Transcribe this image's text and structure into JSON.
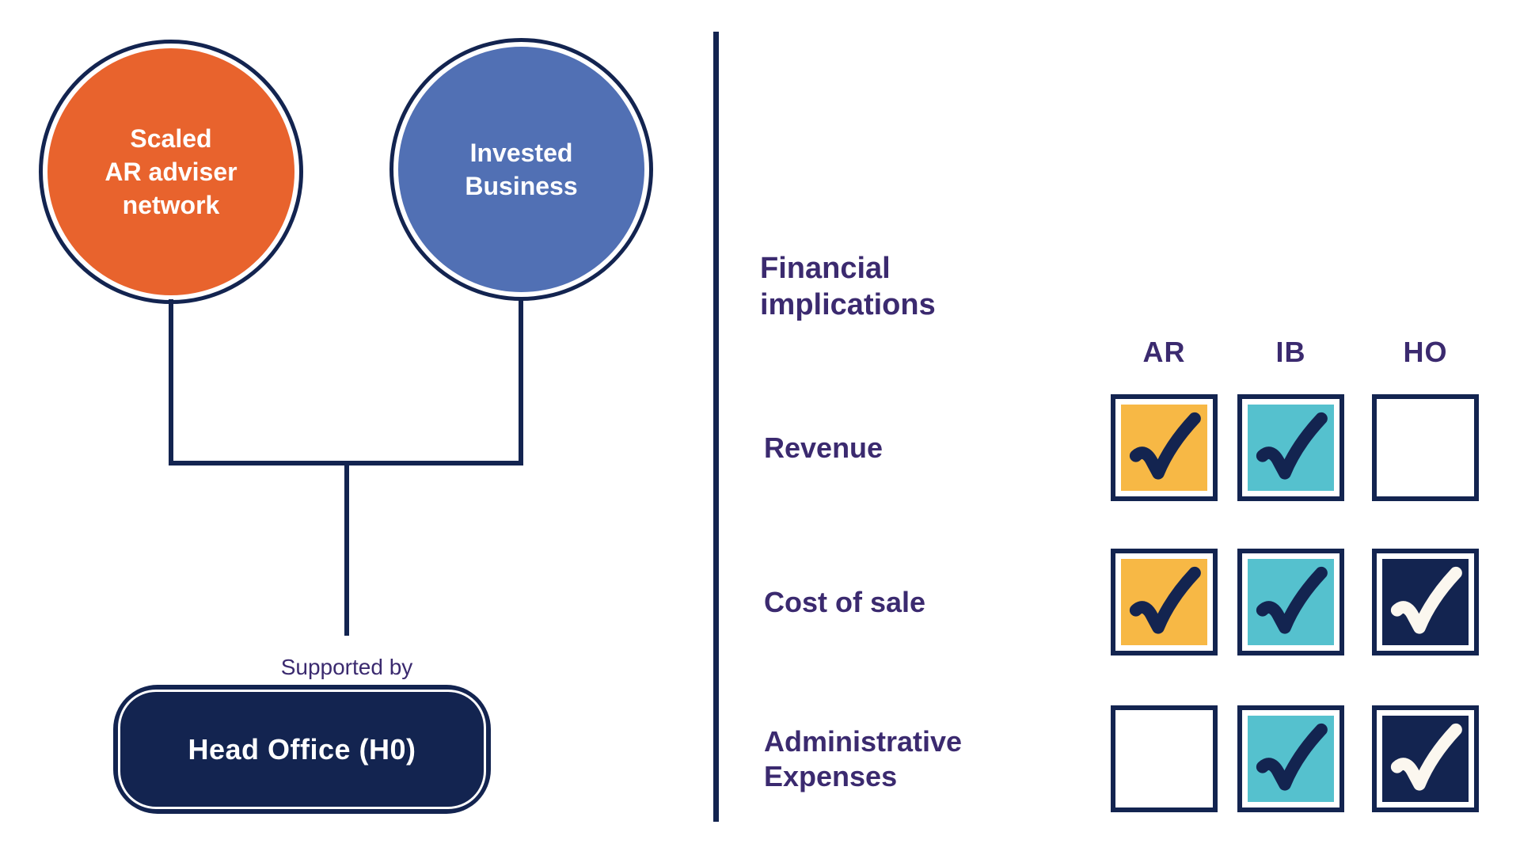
{
  "colors": {
    "navy": "#132450",
    "orange": "#E8632D",
    "blue": "#5170B4",
    "yellow": "#F7B845",
    "teal": "#55C1CE",
    "purple": "#3B2A6F",
    "check_light": "#FBF7EF"
  },
  "org_chart": {
    "circles": [
      {
        "label": "Scaled\nAR adviser\nnetwork",
        "fill": "orange"
      },
      {
        "label": "Invested\nBusiness",
        "fill": "blue"
      }
    ],
    "supported_by": "Supported by",
    "head_office": "Head Office (H0)"
  },
  "matrix": {
    "title": "Financial\nimplications",
    "columns": [
      "AR",
      "IB",
      "HO"
    ],
    "rows": [
      {
        "label": "Revenue",
        "cells": [
          {
            "checked": true,
            "fill": "yellow"
          },
          {
            "checked": true,
            "fill": "teal"
          },
          {
            "checked": false,
            "fill": "white"
          }
        ]
      },
      {
        "label": "Cost of sale",
        "cells": [
          {
            "checked": true,
            "fill": "yellow"
          },
          {
            "checked": true,
            "fill": "teal"
          },
          {
            "checked": true,
            "fill": "navy"
          }
        ]
      },
      {
        "label": "Administrative\nExpenses",
        "cells": [
          {
            "checked": false,
            "fill": "white"
          },
          {
            "checked": true,
            "fill": "teal"
          },
          {
            "checked": true,
            "fill": "navy"
          }
        ]
      }
    ]
  }
}
